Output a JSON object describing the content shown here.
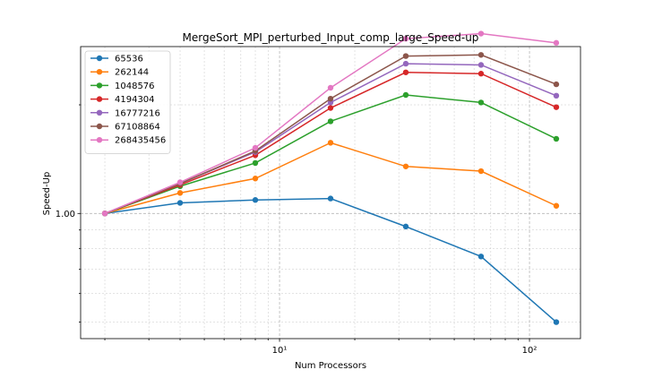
{
  "chart_data": {
    "type": "line",
    "title": "MergeSort_MPI_perturbed_Input_comp_large_Speed-up",
    "xlabel": "Num Processors",
    "ylabel": "Speed-Up",
    "x_scale": "log",
    "y_scale": "log",
    "x": [
      2,
      4,
      8,
      16,
      32,
      64,
      128
    ],
    "xlim": [
      1.6,
      160
    ],
    "ylim": [
      0.45,
      2.9
    ],
    "x_ticks": [
      {
        "value": 10,
        "label": "10¹"
      },
      {
        "value": 100,
        "label": "10²"
      }
    ],
    "y_ticks": [
      {
        "value": 1,
        "label": "1.00"
      }
    ],
    "grid": true,
    "legend_position": "top-left",
    "series": [
      {
        "name": "65536",
        "color": "#1f77b4",
        "values": [
          1.0,
          1.07,
          1.09,
          1.1,
          0.92,
          0.76,
          0.5
        ]
      },
      {
        "name": "262144",
        "color": "#ff7f0e",
        "values": [
          1.0,
          1.14,
          1.25,
          1.57,
          1.35,
          1.31,
          1.05
        ]
      },
      {
        "name": "1048576",
        "color": "#2ca02c",
        "values": [
          1.0,
          1.19,
          1.38,
          1.8,
          2.13,
          2.03,
          1.61
        ]
      },
      {
        "name": "4194304",
        "color": "#d62728",
        "values": [
          1.0,
          1.2,
          1.45,
          1.96,
          2.46,
          2.44,
          1.97
        ]
      },
      {
        "name": "16777216",
        "color": "#9467bd",
        "values": [
          1.0,
          1.21,
          1.48,
          2.03,
          2.6,
          2.58,
          2.12
        ]
      },
      {
        "name": "67108864",
        "color": "#8c564b",
        "values": [
          1.0,
          1.21,
          1.49,
          2.08,
          2.73,
          2.75,
          2.28
        ]
      },
      {
        "name": "268435456",
        "color": "#e377c2",
        "values": [
          1.0,
          1.22,
          1.52,
          2.23,
          3.05,
          3.15,
          2.97
        ]
      }
    ]
  }
}
